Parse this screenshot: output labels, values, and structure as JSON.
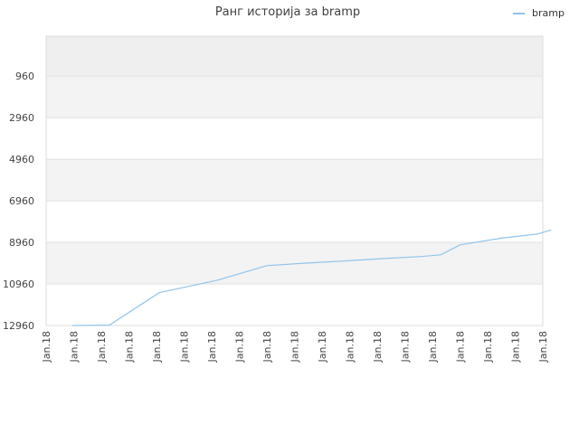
{
  "chart_data": {
    "type": "line",
    "title": "Ранг историја за bramp",
    "xlabel": "",
    "ylabel": "",
    "y_inverted": true,
    "ylim": [
      12960,
      0
    ],
    "yticks": [
      "960",
      "2960",
      "4960",
      "6960",
      "8960",
      "10960",
      "12960"
    ],
    "xticks": [
      "Jan.18",
      "Jan.18",
      "Jan.18",
      "Jan.18",
      "Jan.18",
      "Jan.18",
      "Jan.18",
      "Jan.18",
      "Jan.18",
      "Jan.18",
      "Jan.18",
      "Jan.18",
      "Jan.18",
      "Jan.18",
      "Jan.18",
      "Jan.18",
      "Jan.18",
      "Jan.18",
      "Jan.18"
    ],
    "legend": {
      "position": "top-right"
    },
    "grid": true,
    "band_colors": [
      "#efefef",
      "#ffffff"
    ],
    "series": [
      {
        "name": "bramp",
        "color": "#90c4ec",
        "x": [
          0.95,
          2.3,
          4.1,
          6.2,
          8.0,
          9.4,
          10.8,
          12.2,
          13.6,
          14.3,
          15.0,
          16.5,
          17.8,
          18.3
        ],
        "y": [
          12960,
          12940,
          11380,
          10780,
          10080,
          9960,
          9860,
          9740,
          9640,
          9560,
          9080,
          8760,
          8560,
          8360
        ]
      }
    ]
  }
}
